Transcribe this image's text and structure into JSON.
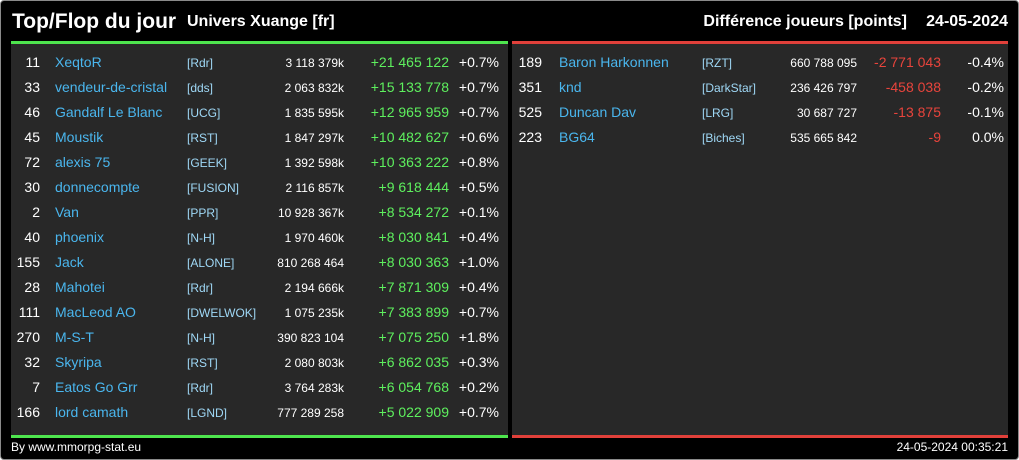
{
  "header": {
    "title": "Top/Flop du jour",
    "univers": "Univers Xuange [fr]",
    "metric": "Différence joueurs [points]",
    "date": "24-05-2024"
  },
  "colors": {
    "top_accent": "#4ee44e",
    "flop_accent": "#e0403a",
    "name": "#4ab6ee",
    "panel_bg": "#282828"
  },
  "top": [
    {
      "rank": "11",
      "name": "XeqtoR",
      "tag": "[Rdr]",
      "points": "3 118 379k",
      "delta": "+21 465 122",
      "pct": "+0.7%"
    },
    {
      "rank": "33",
      "name": "vendeur-de-cristal",
      "tag": "[dds]",
      "points": "2 063 832k",
      "delta": "+15 133 778",
      "pct": "+0.7%"
    },
    {
      "rank": "46",
      "name": "Gandalf Le Blanc",
      "tag": "[UCG]",
      "points": "1 835 595k",
      "delta": "+12 965 959",
      "pct": "+0.7%"
    },
    {
      "rank": "45",
      "name": "Moustik",
      "tag": "[RST]",
      "points": "1 847 297k",
      "delta": "+10 482 627",
      "pct": "+0.6%"
    },
    {
      "rank": "72",
      "name": "alexis 75",
      "tag": "[GEEK]",
      "points": "1 392 598k",
      "delta": "+10 363 222",
      "pct": "+0.8%"
    },
    {
      "rank": "30",
      "name": "donnecompte",
      "tag": "[FUSION]",
      "points": "2 116 857k",
      "delta": "+9 618 444",
      "pct": "+0.5%"
    },
    {
      "rank": "2",
      "name": "Van",
      "tag": "[PPR]",
      "points": "10 928 367k",
      "delta": "+8 534 272",
      "pct": "+0.1%"
    },
    {
      "rank": "40",
      "name": "phoenix",
      "tag": "[N-H]",
      "points": "1 970 460k",
      "delta": "+8 030 841",
      "pct": "+0.4%"
    },
    {
      "rank": "155",
      "name": "Jack",
      "tag": "[ALONE]",
      "points": "810 268 464",
      "delta": "+8 030 363",
      "pct": "+1.0%"
    },
    {
      "rank": "28",
      "name": "Mahotei",
      "tag": "[Rdr]",
      "points": "2 194 666k",
      "delta": "+7 871 309",
      "pct": "+0.4%"
    },
    {
      "rank": "111",
      "name": "MacLeod AO",
      "tag": "[DWELWOK]",
      "points": "1 075 235k",
      "delta": "+7 383 899",
      "pct": "+0.7%"
    },
    {
      "rank": "270",
      "name": "M-S-T",
      "tag": "[N-H]",
      "points": "390 823 104",
      "delta": "+7 075 250",
      "pct": "+1.8%"
    },
    {
      "rank": "32",
      "name": "Skyripa",
      "tag": "[RST]",
      "points": "2 080 803k",
      "delta": "+6 862 035",
      "pct": "+0.3%"
    },
    {
      "rank": "7",
      "name": "Eatos Go Grr",
      "tag": "[Rdr]",
      "points": "3 764 283k",
      "delta": "+6 054 768",
      "pct": "+0.2%"
    },
    {
      "rank": "166",
      "name": "lord camath",
      "tag": "[LGND]",
      "points": "777 289 258",
      "delta": "+5 022 909",
      "pct": "+0.7%"
    }
  ],
  "flop": [
    {
      "rank": "189",
      "name": "Baron Harkonnen",
      "tag": "[RZT]",
      "points": "660 788 095",
      "delta": "-2 771 043",
      "pct": "-0.4%"
    },
    {
      "rank": "351",
      "name": "knd",
      "tag": "[DarkStar]",
      "points": "236 426 797",
      "delta": "-458 038",
      "pct": "-0.2%"
    },
    {
      "rank": "525",
      "name": "Duncan Dav",
      "tag": "[LRG]",
      "points": "30 687 727",
      "delta": "-13 875",
      "pct": "-0.1%"
    },
    {
      "rank": "223",
      "name": "BG64",
      "tag": "[Biches]",
      "points": "535 665 842",
      "delta": "-9",
      "pct": "0.0%"
    }
  ],
  "footer": {
    "credit": "By www.mmorpg-stat.eu",
    "timestamp": "24-05-2024 00:35:21"
  }
}
